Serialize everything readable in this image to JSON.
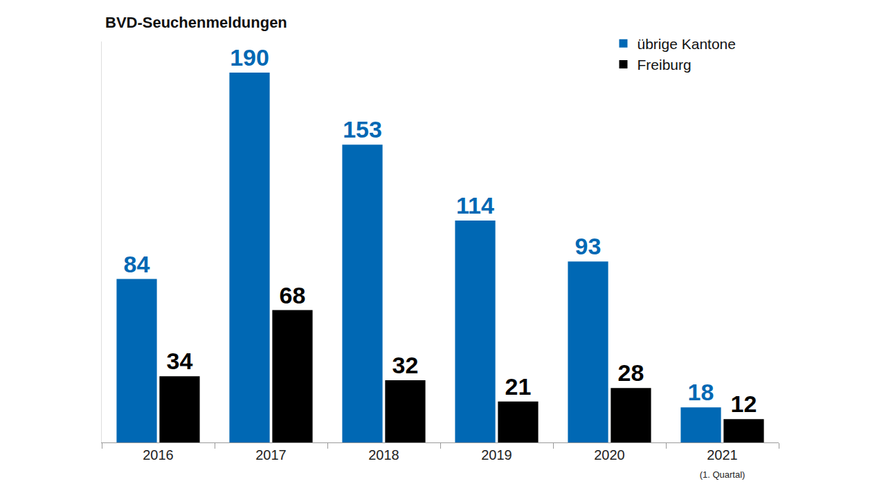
{
  "chart_data": {
    "type": "bar",
    "title": "BVD-Seuchenmeldungen",
    "categories": [
      "2016",
      "2017",
      "2018",
      "2019",
      "2020",
      "2021 (1. Quartal)"
    ],
    "series": [
      {
        "name": "übrige Kantone",
        "color": "#0068b4",
        "values": [
          84,
          190,
          153,
          114,
          93,
          18
        ]
      },
      {
        "name": "Freiburg",
        "color": "#000000",
        "values": [
          34,
          68,
          32,
          21,
          28,
          12
        ]
      }
    ],
    "ylim": [
      0,
      206
    ],
    "grid": false,
    "legend": "upper right",
    "data_labels": true,
    "tick_labels": "x"
  }
}
